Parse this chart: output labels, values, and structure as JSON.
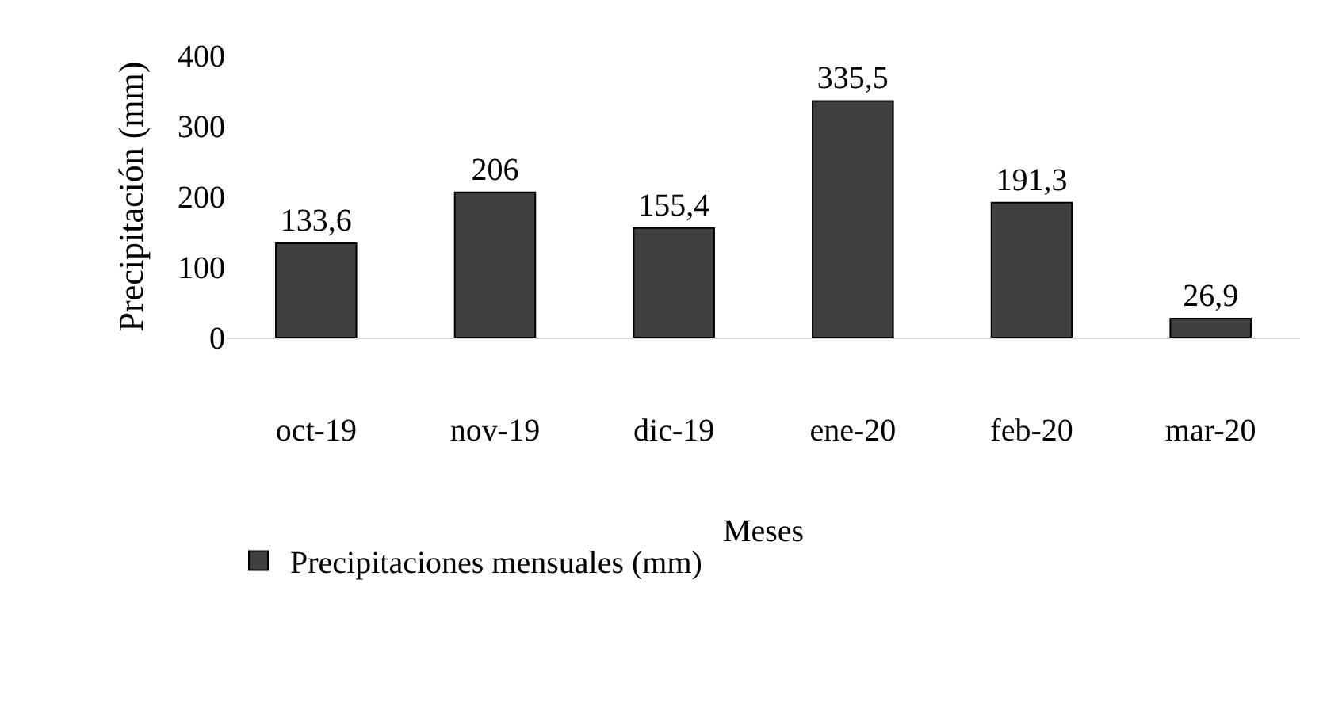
{
  "chart_data": {
    "type": "bar",
    "xlabel": "Meses",
    "ylabel": "Precipitación (mm)",
    "categories": [
      "oct-19",
      "nov-19",
      "dic-19",
      "ene-20",
      "feb-20",
      "mar-20"
    ],
    "series": [
      {
        "name": "Precipitaciones mensuales (mm)",
        "color": "#404040",
        "values": [
          133.6,
          206,
          155.4,
          335.5,
          191.3,
          26.9
        ],
        "value_labels": [
          "133,6",
          "206",
          "155,4",
          "335,5",
          "191,3",
          "26,9"
        ]
      }
    ],
    "ylim": [
      0,
      400
    ],
    "yticks": [
      0,
      100,
      200,
      300,
      400
    ],
    "grid": false,
    "legend": "bottom"
  }
}
